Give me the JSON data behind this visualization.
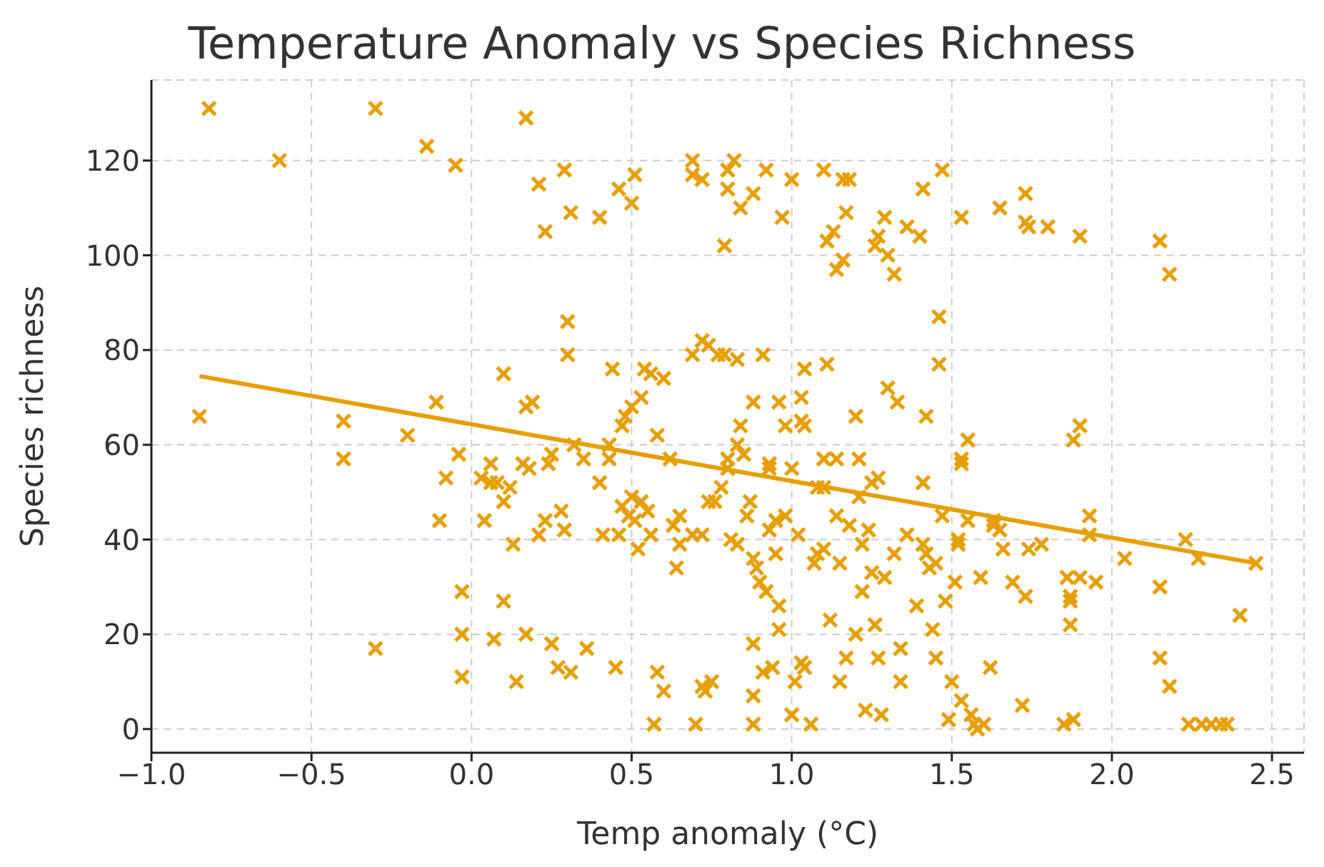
{
  "chart_data": {
    "type": "scatter",
    "title": "Temperature Anomaly vs Species Richness",
    "xlabel": "Temp anomaly (°C)",
    "ylabel": "Species richness",
    "xlim": [
      -1.0,
      2.6
    ],
    "xticks": [
      {
        "value": -1.0,
        "label": "−1.0"
      },
      {
        "value": -0.5,
        "label": "−0.5"
      },
      {
        "value": 0.0,
        "label": "0.0"
      },
      {
        "value": 0.5,
        "label": "0.5"
      },
      {
        "value": 1.0,
        "label": "1.0"
      },
      {
        "value": 1.5,
        "label": "1.5"
      },
      {
        "value": 2.0,
        "label": "2.0"
      },
      {
        "value": 2.5,
        "label": "2.5"
      }
    ],
    "ylim": [
      -5,
      137
    ],
    "yticks": [
      0,
      20,
      40,
      60,
      80,
      100,
      120
    ],
    "grid": true,
    "series": [
      {
        "marker": "cross",
        "color": "#e69f00",
        "x": [
          -0.82,
          -0.3,
          0.17,
          -0.6,
          -0.05,
          -0.14,
          0.21,
          0.23,
          0.29,
          0.31,
          0.4,
          0.46,
          0.5,
          0.51,
          0.69,
          0.69,
          0.72,
          0.8,
          0.8,
          0.82,
          0.79,
          0.84,
          0.88,
          0.92,
          0.97,
          1.0,
          1.1,
          1.11,
          1.13,
          1.16,
          1.18,
          1.17,
          1.14,
          1.16,
          1.26,
          1.27,
          1.29,
          1.3,
          1.32,
          1.36,
          1.4,
          1.41,
          1.47,
          1.53,
          1.65,
          1.73,
          1.73,
          1.74,
          1.8,
          1.9,
          2.15,
          2.18,
          -0.85,
          -0.4,
          -0.4,
          -0.2,
          -0.11,
          -0.04,
          -0.08,
          -0.1,
          0.03,
          0.06,
          0.08,
          0.06,
          0.1,
          0.1,
          0.17,
          0.19,
          0.16,
          0.18,
          0.24,
          0.25,
          0.3,
          0.3,
          0.32,
          0.35,
          0.4,
          0.43,
          0.44,
          0.43,
          0.47,
          0.48,
          0.5,
          0.53,
          0.54,
          0.56,
          0.6,
          0.58,
          0.62,
          0.69,
          0.72,
          0.74,
          0.77,
          0.79,
          0.83,
          0.91,
          0.8,
          0.83,
          0.84,
          0.85,
          0.88,
          0.93,
          0.93,
          0.96,
          0.98,
          1.0,
          1.03,
          1.04,
          1.03,
          1.04,
          1.1,
          1.11,
          1.14,
          1.2,
          1.21,
          1.25,
          1.27,
          1.3,
          1.33,
          1.42,
          1.41,
          1.46,
          1.46,
          1.53,
          1.53,
          1.55,
          1.88,
          1.9,
          -0.03,
          -0.03,
          -0.03,
          0.04,
          0.1,
          0.13,
          0.14,
          0.17,
          0.21,
          0.23,
          0.25,
          0.27,
          0.28,
          0.29,
          0.31,
          0.36,
          0.41,
          0.45,
          0.46,
          0.47,
          0.49,
          0.5,
          0.51,
          0.52,
          0.53,
          0.55,
          0.56,
          0.58,
          0.57,
          0.6,
          0.63,
          0.65,
          0.64,
          0.65,
          0.69,
          0.7,
          0.72,
          0.73,
          0.72,
          0.74,
          0.75,
          0.76,
          0.78,
          0.8,
          0.81,
          0.83,
          0.87,
          0.86,
          0.88,
          0.89,
          0.88,
          0.88,
          0.88,
          0.9,
          0.91,
          0.92,
          0.93,
          0.94,
          0.95,
          0.96,
          0.96,
          0.95,
          0.98,
          1.0,
          1.01,
          1.02,
          1.03,
          1.04,
          1.06,
          1.08,
          1.07,
          1.08,
          1.1,
          1.1,
          1.12,
          1.14,
          1.15,
          1.15,
          1.17,
          1.18,
          1.2,
          1.21,
          1.22,
          1.24,
          1.22,
          1.23,
          1.25,
          1.26,
          1.27,
          1.28,
          1.29,
          1.32,
          1.34,
          1.34,
          1.36,
          1.39,
          1.41,
          1.42,
          1.43,
          1.44,
          1.45,
          1.45,
          1.47,
          1.48,
          1.49,
          1.5,
          1.51,
          1.52,
          1.52,
          1.53,
          1.55,
          1.56,
          1.57,
          1.58,
          1.59,
          1.6,
          1.62,
          1.63,
          1.63,
          1.65,
          1.66,
          1.69,
          1.72,
          1.73,
          1.74,
          1.78,
          1.85,
          1.86,
          1.87,
          1.87,
          1.87,
          1.88,
          1.9,
          1.93,
          1.93,
          1.95,
          2.04,
          2.15,
          2.15,
          2.18,
          2.23,
          2.24,
          2.27,
          2.28,
          2.31,
          2.34,
          2.36,
          2.4,
          2.45,
          -0.3,
          0.07,
          0.12
        ],
        "values": [
          131,
          131,
          129,
          120,
          119,
          123,
          115,
          105,
          118,
          109,
          108,
          114,
          111,
          117,
          120,
          117,
          116,
          118,
          114,
          120,
          102,
          110,
          113,
          118,
          108,
          116,
          118,
          103,
          105,
          116,
          116,
          109,
          97,
          99,
          102,
          104,
          108,
          100,
          96,
          106,
          104,
          114,
          118,
          108,
          110,
          113,
          107,
          106,
          106,
          104,
          103,
          96,
          66,
          65,
          57,
          62,
          69,
          58,
          53,
          44,
          53,
          56,
          52,
          52,
          75,
          48,
          68,
          69,
          56,
          55,
          56,
          58,
          86,
          79,
          60,
          57,
          52,
          57,
          76,
          60,
          64,
          66,
          68,
          70,
          76,
          75,
          74,
          62,
          57,
          79,
          82,
          81,
          79,
          79,
          78,
          79,
          57,
          60,
          64,
          58,
          69,
          56,
          55,
          69,
          64,
          55,
          70,
          76,
          65,
          64,
          57,
          77,
          57,
          66,
          57,
          52,
          53,
          72,
          69,
          66,
          52,
          87,
          77,
          57,
          56,
          61,
          61,
          64,
          29,
          20,
          11,
          44,
          27,
          39,
          10,
          20,
          41,
          44,
          18,
          13,
          46,
          42,
          12,
          17,
          41,
          13,
          41,
          47,
          45,
          49,
          44,
          38,
          48,
          46,
          41,
          12,
          1,
          8,
          43,
          39,
          34,
          45,
          41,
          1,
          9,
          8,
          41,
          48,
          10,
          48,
          51,
          55,
          40,
          39,
          48,
          45,
          36,
          34,
          18,
          7,
          1,
          31,
          12,
          29,
          42,
          13,
          37,
          21,
          26,
          44,
          45,
          3,
          10,
          41,
          14,
          13,
          1,
          51,
          35,
          37,
          38,
          51,
          23,
          45,
          10,
          35,
          15,
          43,
          20,
          49,
          39,
          42,
          29,
          4,
          33,
          22,
          15,
          3,
          32,
          37,
          17,
          10,
          41,
          26,
          39,
          37,
          34,
          21,
          35,
          15,
          45,
          27,
          2,
          10,
          31,
          40,
          39,
          6,
          44,
          3,
          1,
          0,
          32,
          1,
          13,
          44,
          43,
          42,
          38,
          31,
          5,
          28,
          38,
          39,
          1,
          32,
          28,
          22,
          27,
          2,
          32,
          45,
          41,
          31,
          36,
          30,
          15,
          9,
          40,
          1,
          36,
          1,
          1,
          1,
          1,
          24,
          35,
          17,
          19,
          51
        ]
      },
      {
        "type": "line",
        "color": "#e69f00",
        "x": [
          -0.85,
          2.45
        ],
        "values": [
          74.5,
          35
        ]
      }
    ]
  }
}
